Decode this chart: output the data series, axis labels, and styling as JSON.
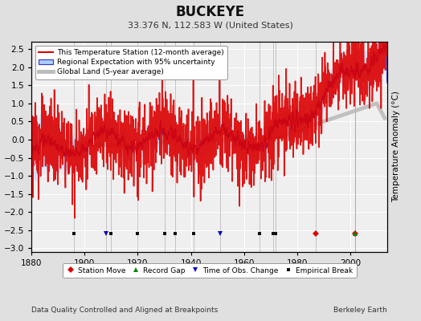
{
  "title": "BUCKEYE",
  "subtitle": "33.376 N, 112.583 W (United States)",
  "ylabel": "Temperature Anomaly (°C)",
  "xlabel_left": "Data Quality Controlled and Aligned at Breakpoints",
  "xlabel_right": "Berkeley Earth",
  "ylim": [
    -3.1,
    2.7
  ],
  "xlim": [
    1880,
    2014
  ],
  "yticks": [
    -3,
    -2.5,
    -2,
    -1.5,
    -1,
    -0.5,
    0,
    0.5,
    1,
    1.5,
    2,
    2.5
  ],
  "xticks": [
    1880,
    1900,
    1920,
    1940,
    1960,
    1980,
    2000
  ],
  "bg_color": "#e0e0e0",
  "plot_bg_color": "#efefef",
  "grid_color": "#ffffff",
  "station_move_years": [
    1987,
    2002
  ],
  "record_gap_years": [
    2002
  ],
  "obs_change_years": [
    1908,
    1951
  ],
  "empirical_break_years": [
    1896,
    1910,
    1920,
    1930,
    1934,
    1941,
    1966,
    1971,
    1972
  ],
  "marker_y": -2.58,
  "vline_color": "#888888",
  "legend_entries": [
    {
      "label": "This Temperature Station (12-month average)",
      "color": "#dd0000",
      "lw": 1.2
    },
    {
      "label": "Regional Expectation with 95% uncertainty",
      "color": "#3333cc",
      "lw": 1.0
    },
    {
      "label": "Global Land (5-year average)",
      "color": "#bbbbbb",
      "lw": 3.5
    }
  ],
  "marker_legend": [
    {
      "label": "Station Move",
      "marker": "D",
      "color": "#dd0000"
    },
    {
      "label": "Record Gap",
      "marker": "^",
      "color": "#008800"
    },
    {
      "label": "Time of Obs. Change",
      "marker": "v",
      "color": "#0000cc"
    },
    {
      "label": "Empirical Break",
      "marker": "s",
      "color": "#111111"
    }
  ]
}
